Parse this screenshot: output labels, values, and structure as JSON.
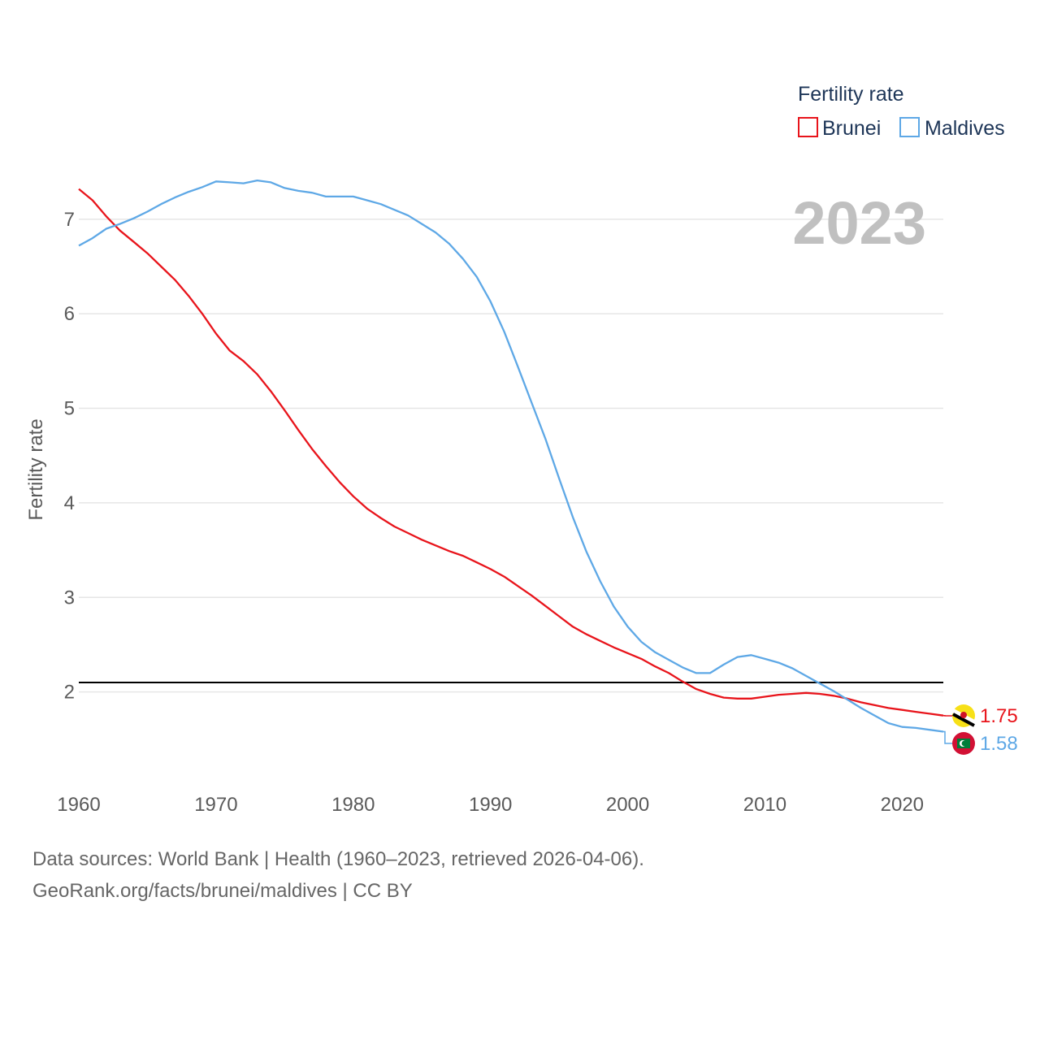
{
  "chart_data": {
    "type": "line",
    "legend_title": "Fertility rate",
    "ylabel": "Fertility rate",
    "year_label": "2023",
    "xlim": [
      1960,
      2023
    ],
    "ylim": [
      1.0,
      7.6
    ],
    "x_ticks": [
      1960,
      1970,
      1980,
      1990,
      2000,
      2010,
      2020
    ],
    "x_tick_labels": [
      "1960",
      "1970",
      "1980",
      "1990",
      "2000",
      "2010",
      "2020"
    ],
    "y_ticks": [
      2,
      3,
      4,
      5,
      6,
      7
    ],
    "y_tick_labels": [
      "2",
      "3",
      "4",
      "5",
      "6",
      "7"
    ],
    "reference_line": 2.1,
    "reference_color": "#000000",
    "grid_color": "#e6e6e6",
    "series": [
      {
        "name": "Brunei",
        "color": "#e8141b",
        "end_label": "1.75",
        "flag_icon": "brunei-flag-icon",
        "x": [
          1960,
          1961,
          1962,
          1963,
          1964,
          1965,
          1966,
          1967,
          1968,
          1969,
          1970,
          1971,
          1972,
          1973,
          1974,
          1975,
          1976,
          1977,
          1978,
          1979,
          1980,
          1981,
          1982,
          1983,
          1984,
          1985,
          1986,
          1987,
          1988,
          1989,
          1990,
          1991,
          1992,
          1993,
          1994,
          1995,
          1996,
          1997,
          1998,
          1999,
          2000,
          2001,
          2002,
          2003,
          2004,
          2005,
          2006,
          2007,
          2008,
          2009,
          2010,
          2011,
          2012,
          2013,
          2014,
          2015,
          2016,
          2017,
          2018,
          2019,
          2020,
          2021,
          2022,
          2023
        ],
        "values": [
          7.32,
          7.2,
          7.03,
          6.88,
          6.76,
          6.64,
          6.5,
          6.36,
          6.19,
          6.0,
          5.79,
          5.61,
          5.5,
          5.36,
          5.18,
          4.98,
          4.77,
          4.57,
          4.39,
          4.22,
          4.07,
          3.94,
          3.84,
          3.75,
          3.68,
          3.61,
          3.55,
          3.49,
          3.44,
          3.37,
          3.3,
          3.22,
          3.12,
          3.02,
          2.91,
          2.8,
          2.69,
          2.61,
          2.54,
          2.47,
          2.41,
          2.35,
          2.27,
          2.2,
          2.11,
          2.03,
          1.98,
          1.94,
          1.93,
          1.93,
          1.95,
          1.97,
          1.98,
          1.99,
          1.98,
          1.96,
          1.93,
          1.89,
          1.86,
          1.83,
          1.81,
          1.79,
          1.77,
          1.75
        ]
      },
      {
        "name": "Maldives",
        "color": "#5ea8e6",
        "end_label": "1.58",
        "flag_icon": "maldives-flag-icon",
        "x": [
          1960,
          1961,
          1962,
          1963,
          1964,
          1965,
          1966,
          1967,
          1968,
          1969,
          1970,
          1971,
          1972,
          1973,
          1974,
          1975,
          1976,
          1977,
          1978,
          1979,
          1980,
          1981,
          1982,
          1983,
          1984,
          1985,
          1986,
          1987,
          1988,
          1989,
          1990,
          1991,
          1992,
          1993,
          1994,
          1995,
          1996,
          1997,
          1998,
          1999,
          2000,
          2001,
          2002,
          2003,
          2004,
          2005,
          2006,
          2007,
          2008,
          2009,
          2010,
          2011,
          2012,
          2013,
          2014,
          2015,
          2016,
          2017,
          2018,
          2019,
          2020,
          2021,
          2022,
          2023
        ],
        "values": [
          6.72,
          6.8,
          6.9,
          6.95,
          7.01,
          7.08,
          7.16,
          7.23,
          7.29,
          7.34,
          7.4,
          7.39,
          7.38,
          7.41,
          7.39,
          7.33,
          7.3,
          7.28,
          7.24,
          7.24,
          7.24,
          7.2,
          7.16,
          7.1,
          7.04,
          6.95,
          6.86,
          6.74,
          6.58,
          6.39,
          6.13,
          5.81,
          5.44,
          5.06,
          4.68,
          4.26,
          3.85,
          3.48,
          3.17,
          2.9,
          2.69,
          2.53,
          2.42,
          2.34,
          2.26,
          2.2,
          2.2,
          2.29,
          2.37,
          2.39,
          2.35,
          2.31,
          2.25,
          2.17,
          2.09,
          2.01,
          1.92,
          1.83,
          1.75,
          1.67,
          1.63,
          1.62,
          1.6,
          1.58
        ]
      }
    ]
  },
  "footer": {
    "line1": "Data sources: World Bank | Health (1960–2023, retrieved 2026-04-06).",
    "line2": "GeoRank.org/facts/brunei/maldives | CC BY"
  }
}
